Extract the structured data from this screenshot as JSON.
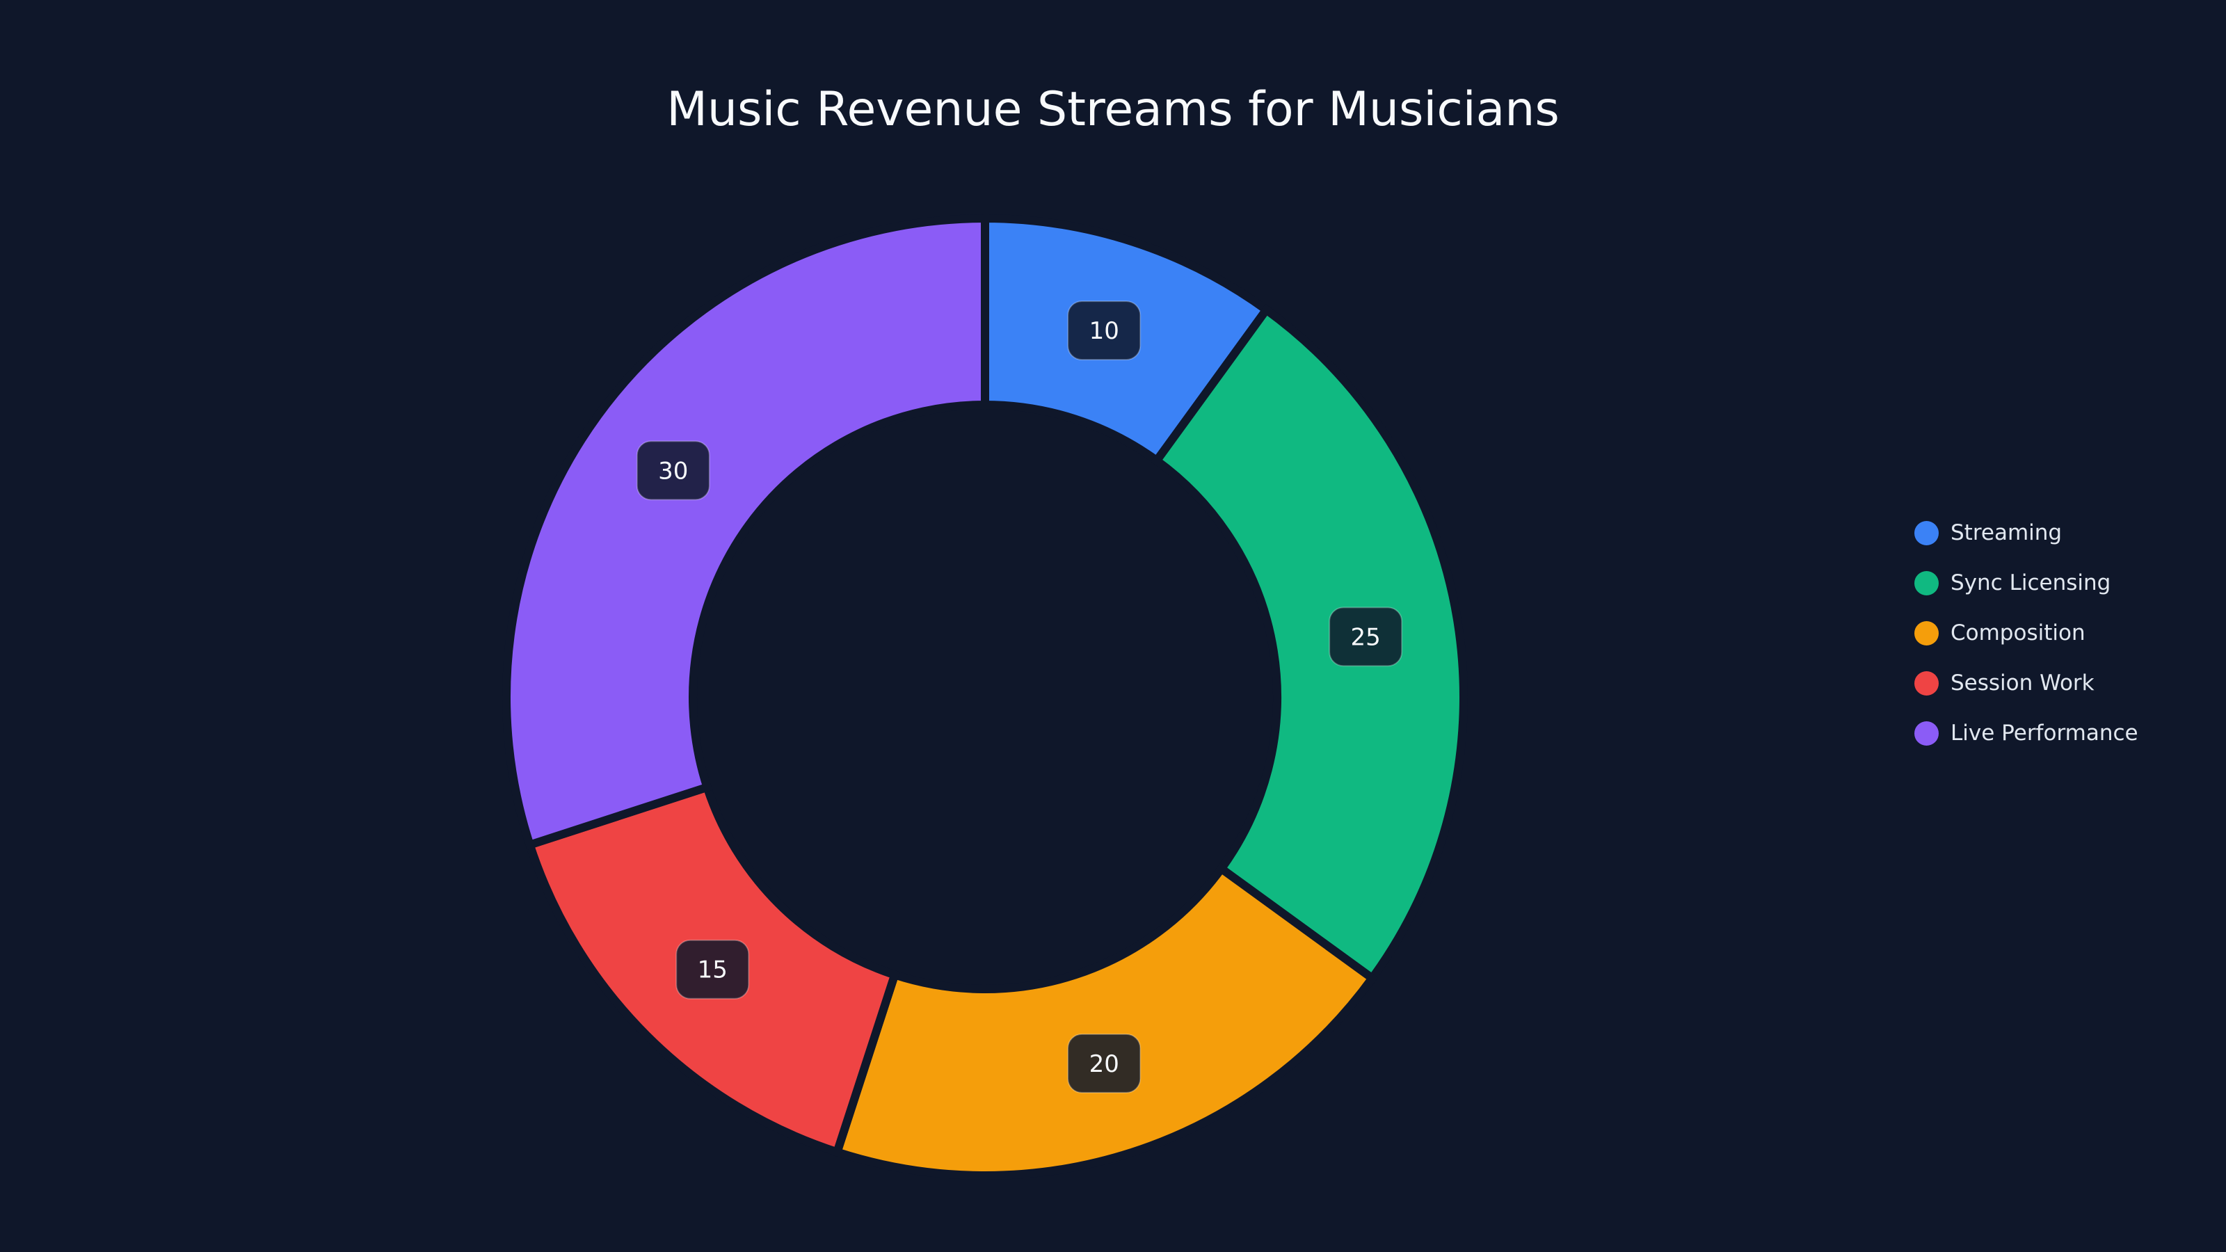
{
  "chart_data": {
    "type": "pie",
    "variant": "donut",
    "title": "Music Revenue Streams for Musicians",
    "categories": [
      "Streaming",
      "Sync Licensing",
      "Composition",
      "Session Work",
      "Live Performance"
    ],
    "values": [
      10,
      25,
      20,
      15,
      30
    ],
    "colors": [
      "#3b82f6",
      "#10b981",
      "#f59e0b",
      "#ef4444",
      "#8b5cf6"
    ],
    "data_labels": [
      "10",
      "25",
      "20",
      "15",
      "30"
    ],
    "start_angle": "top, clockwise",
    "legend_position": "right"
  },
  "background": "#0f172a"
}
